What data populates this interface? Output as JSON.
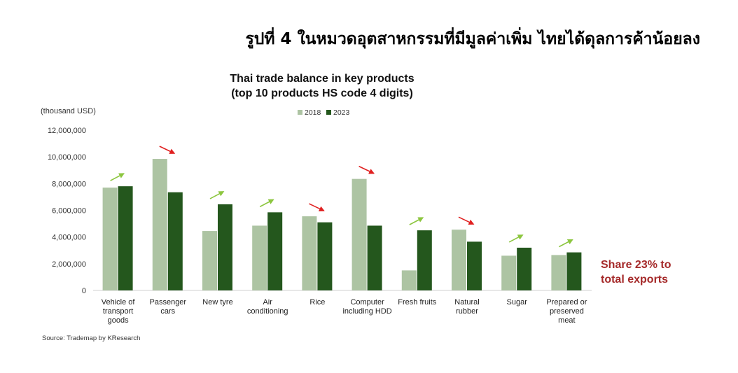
{
  "headline": "รูปที่ 4 ในหมวดอุตสาหกรรมที่มีมูลค่าเพิ่ม ไทยได้ดุลการค้าน้อยลง",
  "source": "Source: Trademap by KResearch",
  "note": [
    "Share 23% to",
    "total exports"
  ],
  "colors": {
    "s2018": "#adc4a3",
    "s2023": "#24571d",
    "up_arrow": "#8cc63f",
    "down_arrow": "#e02020",
    "note": "#a52a2a"
  },
  "chart_data": {
    "type": "bar",
    "title": [
      "Thai trade balance in key products",
      "(top 10 products HS code 4 digits)"
    ],
    "unit_label": "(thousand USD)",
    "ylim": [
      0,
      12000000
    ],
    "yticks": [
      "0",
      "2,000,000",
      "4,000,000",
      "6,000,000",
      "8,000,000",
      "10,000,000",
      "12,000,000"
    ],
    "legend": "top-center",
    "grid": false,
    "categories": [
      [
        "Vehicle of",
        "transport",
        "goods"
      ],
      [
        "Passenger",
        "cars"
      ],
      [
        "New tyre"
      ],
      [
        "Air",
        "conditioning"
      ],
      [
        "Rice"
      ],
      [
        "Computer",
        "including HDD"
      ],
      [
        "Fresh fruits"
      ],
      [
        "Natural",
        "rubber"
      ],
      [
        "Sugar"
      ],
      [
        "Prepared or",
        "preserved",
        "meat"
      ]
    ],
    "series": [
      {
        "name": "2018",
        "values": [
          7700000,
          9850000,
          4450000,
          4850000,
          5550000,
          8350000,
          1500000,
          4550000,
          2600000,
          2650000
        ]
      },
      {
        "name": "2023",
        "values": [
          7800000,
          7350000,
          6450000,
          5850000,
          5100000,
          4850000,
          4500000,
          3650000,
          3200000,
          2850000
        ]
      }
    ],
    "trend": [
      "up",
      "down",
      "up",
      "up",
      "down",
      "down",
      "up",
      "down",
      "up",
      "up"
    ]
  }
}
